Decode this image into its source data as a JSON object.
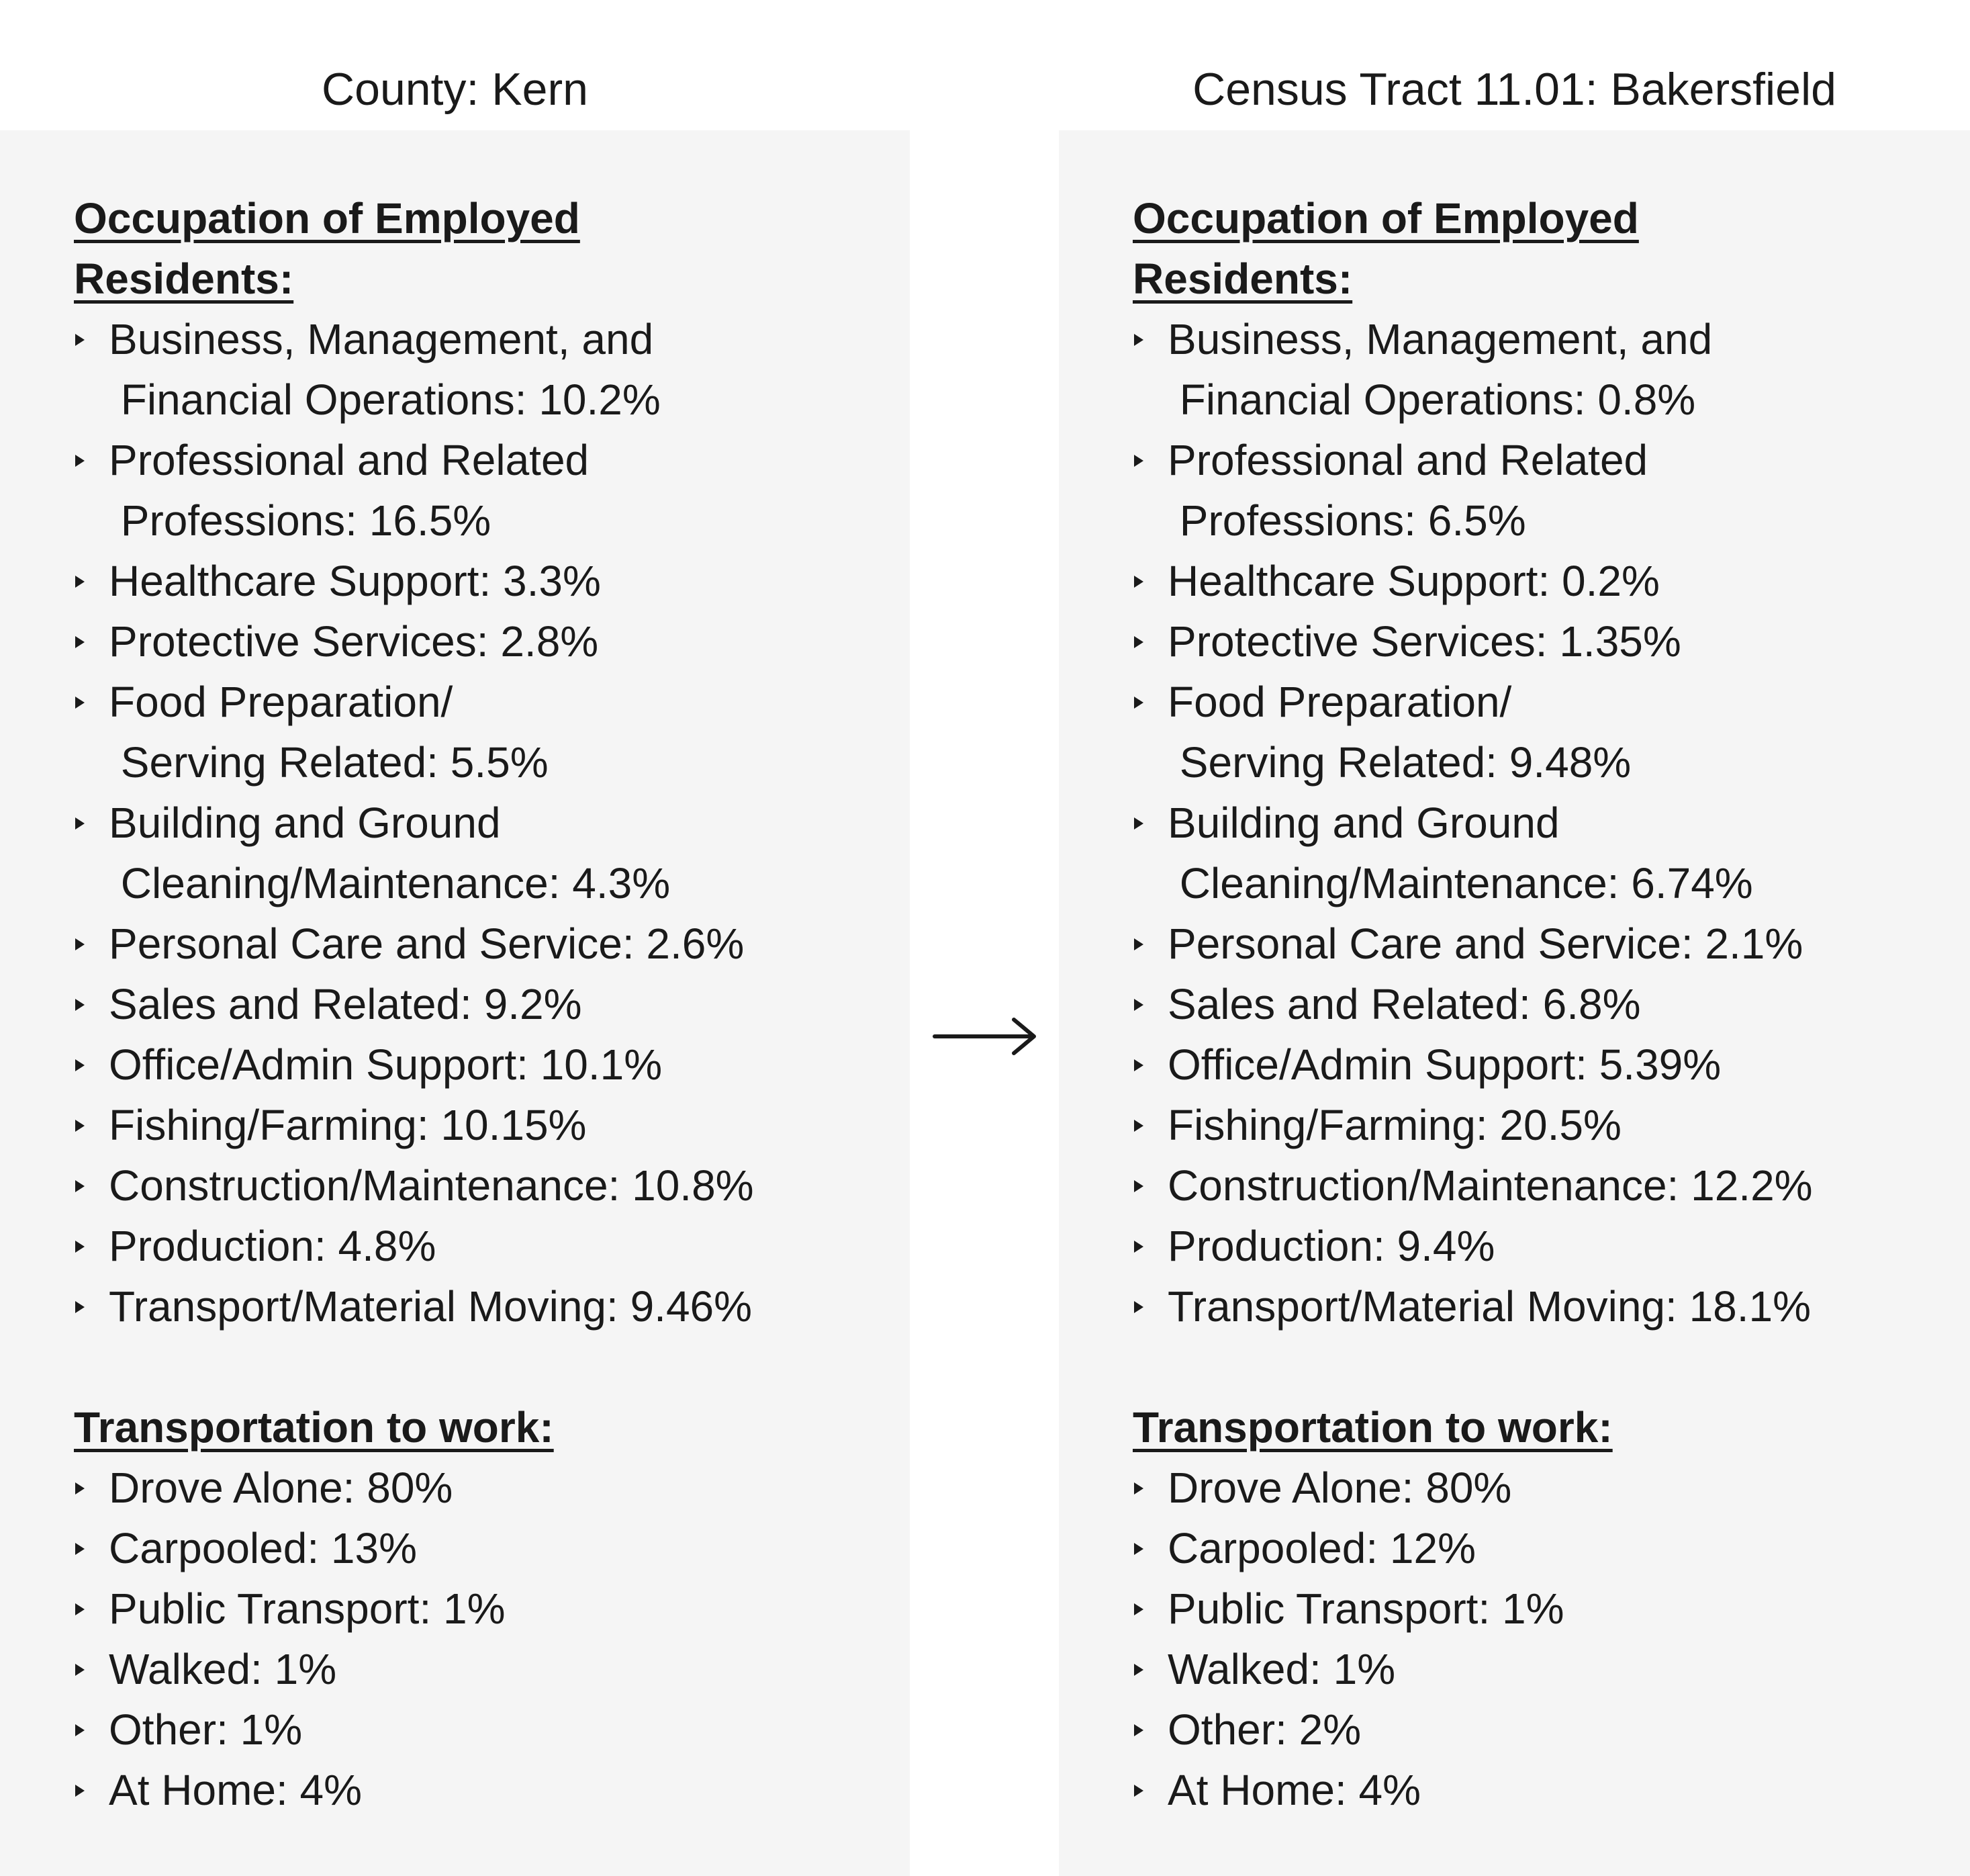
{
  "left": {
    "title": "County: Kern",
    "occupation_heading_line1": "Occupation of Employed",
    "occupation_heading_line2": "Residents:",
    "occupations": [
      "Business, Management, and\n Financial Operations: 10.2%",
      "Professional and Related\n Professions: 16.5%",
      "Healthcare Support: 3.3%",
      "Protective Services: 2.8%",
      "Food Preparation/\n Serving Related: 5.5%",
      "Building and Ground\n Cleaning/Maintenance: 4.3%",
      "Personal Care and Service: 2.6%",
      "Sales and Related: 9.2%",
      "Office/Admin Support: 10.1%",
      "Fishing/Farming: 10.15%",
      "Construction/Maintenance: 10.8%",
      "Production: 4.8%",
      "Transport/Material Moving: 9.46%"
    ],
    "transport_heading": "Transportation to work:",
    "transport": [
      "Drove Alone: 80%",
      "Carpooled: 13%",
      "Public Transport: 1%",
      "Walked: 1%",
      "Other: 1%",
      "At Home: 4%"
    ]
  },
  "right": {
    "title": "Census Tract 11.01: Bakersfield",
    "occupation_heading_line1": "Occupation of Employed",
    "occupation_heading_line2": "Residents:",
    "occupations": [
      "Business, Management, and\n Financial Operations: 0.8%",
      "Professional and Related\n Professions: 6.5%",
      "Healthcare Support: 0.2%",
      "Protective Services: 1.35%",
      "Food Preparation/\n Serving Related: 9.48%",
      "Building and Ground\n Cleaning/Maintenance: 6.74%",
      "Personal Care and Service: 2.1%",
      "Sales and Related: 6.8%",
      "Office/Admin Support: 5.39%",
      "Fishing/Farming: 20.5%",
      "Construction/Maintenance: 12.2%",
      "Production: 9.4%",
      "Transport/Material Moving: 18.1%"
    ],
    "transport_heading": "Transportation to work:",
    "transport": [
      "Drove Alone: 80%",
      "Carpooled: 12%",
      "Public Transport: 1%",
      "Walked: 1%",
      "Other: 2%",
      "At Home: 4%"
    ]
  },
  "arrow_icon": "right-arrow-icon"
}
